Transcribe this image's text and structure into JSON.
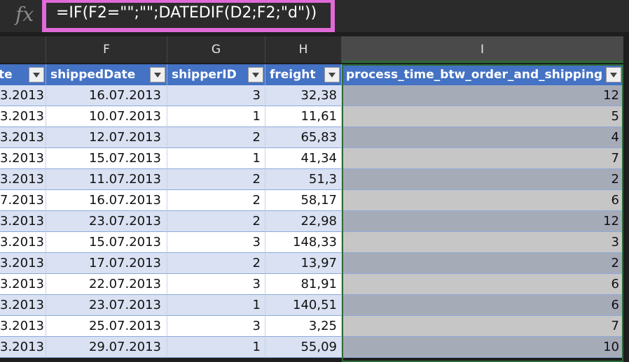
{
  "formula_bar": {
    "fx_label": "fx",
    "formula": "=IF(F2=\"\";\"\";DATEDIF(D2;F2;\"d\"))"
  },
  "columns": [
    {
      "letter": "",
      "header": "te"
    },
    {
      "letter": "F",
      "header": "shippedDate"
    },
    {
      "letter": "G",
      "header": "shipperID"
    },
    {
      "letter": "H",
      "header": "freight"
    },
    {
      "letter": "I",
      "header": "process_time_btw_order_and_shipping"
    }
  ],
  "rows": [
    {
      "e": "3.2013",
      "f": "16.07.2013",
      "g": "3",
      "h": "32,38",
      "i": "12"
    },
    {
      "e": "3.2013",
      "f": "10.07.2013",
      "g": "1",
      "h": "11,61",
      "i": "5"
    },
    {
      "e": "3.2013",
      "f": "12.07.2013",
      "g": "2",
      "h": "65,83",
      "i": "4"
    },
    {
      "e": "3.2013",
      "f": "15.07.2013",
      "g": "1",
      "h": "41,34",
      "i": "7"
    },
    {
      "e": "3.2013",
      "f": "11.07.2013",
      "g": "2",
      "h": "51,3",
      "i": "2"
    },
    {
      "e": "7.2013",
      "f": "16.07.2013",
      "g": "2",
      "h": "58,17",
      "i": "6"
    },
    {
      "e": "3.2013",
      "f": "23.07.2013",
      "g": "2",
      "h": "22,98",
      "i": "12"
    },
    {
      "e": "3.2013",
      "f": "15.07.2013",
      "g": "3",
      "h": "148,33",
      "i": "3"
    },
    {
      "e": "3.2013",
      "f": "17.07.2013",
      "g": "2",
      "h": "13,97",
      "i": "2"
    },
    {
      "e": "3.2013",
      "f": "22.07.2013",
      "g": "3",
      "h": "81,91",
      "i": "6"
    },
    {
      "e": "3.2013",
      "f": "23.07.2013",
      "g": "1",
      "h": "140,51",
      "i": "6"
    },
    {
      "e": "3.2013",
      "f": "25.07.2013",
      "g": "3",
      "h": "3,25",
      "i": "7"
    },
    {
      "e": "3.2013",
      "f": "29.07.2013",
      "g": "1",
      "h": "55,09",
      "i": "10"
    }
  ],
  "colors": {
    "header_blue": "#4472c4",
    "band_light": "#d9e1f2",
    "band_white": "#ffffff",
    "selected_light": "#c6c6c6",
    "selected_dark": "#a6abb8",
    "formula_highlight": "#e06ad8",
    "selection_green": "#2e6b3a"
  }
}
